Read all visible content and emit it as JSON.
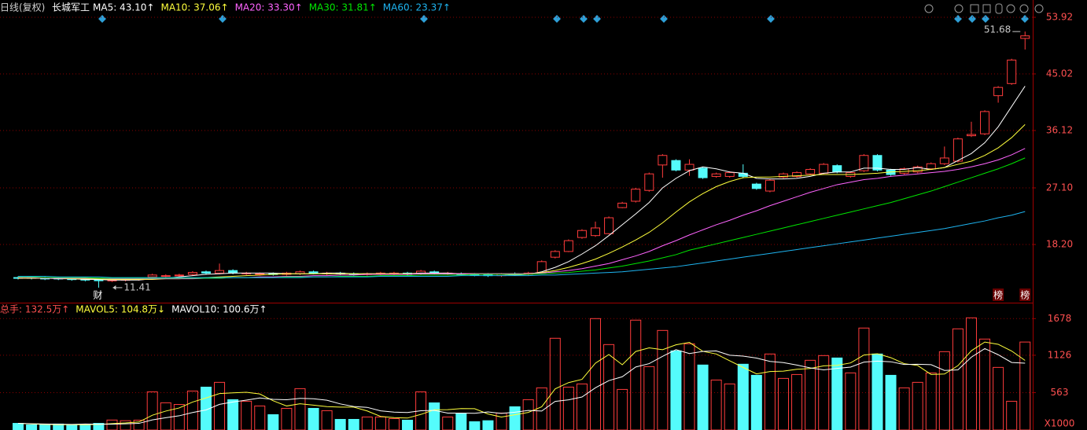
{
  "header": {
    "period": "日线(复权)",
    "name": "长城军工"
  },
  "chart_data": [
    {
      "type": "candlestick",
      "open": [
        13.0,
        13.0,
        12.9,
        12.9,
        12.8,
        12.8,
        12.7,
        12.5,
        12.6,
        12.7,
        13.1,
        13.2,
        13.3,
        13.5,
        13.9,
        13.7,
        14.1,
        13.6,
        13.5,
        13.6,
        13.5,
        13.6,
        13.9,
        13.6,
        13.7,
        13.6,
        13.5,
        13.6,
        13.6,
        13.7,
        13.6,
        13.9,
        13.6,
        13.6,
        13.5,
        13.5,
        13.3,
        13.6,
        13.5,
        13.8,
        16.2,
        17.1,
        19.3,
        19.6,
        19.9,
        24.0,
        25.0,
        26.7,
        30.7,
        31.4,
        29.9,
        30.2,
        28.9,
        28.9,
        29.4,
        27.7,
        26.6,
        28.8,
        28.9,
        29.3,
        29.4,
        30.6,
        28.9,
        29.8,
        32.2,
        29.9,
        29.4,
        29.6,
        30.1,
        30.9,
        31.3,
        35.3,
        35.6,
        41.6,
        43.5,
        50.6
      ],
      "high": [
        13.2,
        13.2,
        13.1,
        13.1,
        13.0,
        13.0,
        12.9,
        12.8,
        12.9,
        13.0,
        13.6,
        13.5,
        13.6,
        14.0,
        14.1,
        15.2,
        14.3,
        13.9,
        13.8,
        13.8,
        13.9,
        14.1,
        14.1,
        13.9,
        13.9,
        13.8,
        13.8,
        13.9,
        13.9,
        13.9,
        14.2,
        14.1,
        13.9,
        13.8,
        13.7,
        13.7,
        13.7,
        13.8,
        13.9,
        15.7,
        17.3,
        19.0,
        20.6,
        21.8,
        22.6,
        24.9,
        27.1,
        29.5,
        32.4,
        31.6,
        31.6,
        30.4,
        29.5,
        29.7,
        30.8,
        27.9,
        28.5,
        29.5,
        29.7,
        30.2,
        31.0,
        30.8,
        29.7,
        32.4,
        32.4,
        30.1,
        30.3,
        30.6,
        31.1,
        33.6,
        35.0,
        37.5,
        39.3,
        43.1,
        47.4,
        51.68
      ],
      "low": [
        12.7,
        12.7,
        12.6,
        12.6,
        12.5,
        12.4,
        11.41,
        12.3,
        12.4,
        12.5,
        12.9,
        13.0,
        13.1,
        13.3,
        13.5,
        13.5,
        13.5,
        13.4,
        13.3,
        13.3,
        13.3,
        13.4,
        13.5,
        13.4,
        13.4,
        13.3,
        13.3,
        13.4,
        13.4,
        13.3,
        13.4,
        13.5,
        13.4,
        13.3,
        13.2,
        13.1,
        13.1,
        13.3,
        13.3,
        13.7,
        16.0,
        17.0,
        19.1,
        19.4,
        19.8,
        23.9,
        24.8,
        26.5,
        28.7,
        29.7,
        29.0,
        28.5,
        28.7,
        28.7,
        28.6,
        26.8,
        26.4,
        28.6,
        28.7,
        29.1,
        29.2,
        29.4,
        28.7,
        29.6,
        29.7,
        29.0,
        29.2,
        29.4,
        29.9,
        30.7,
        31.1,
        35.1,
        35.4,
        40.5,
        43.3,
        48.85
      ],
      "close": [
        12.9,
        12.9,
        12.8,
        12.8,
        12.7,
        12.6,
        12.5,
        12.6,
        12.7,
        12.8,
        13.4,
        13.3,
        13.4,
        13.8,
        13.7,
        14.1,
        13.7,
        13.7,
        13.6,
        13.5,
        13.7,
        13.9,
        13.7,
        13.7,
        13.6,
        13.5,
        13.6,
        13.7,
        13.7,
        13.5,
        14.0,
        13.7,
        13.7,
        13.5,
        13.4,
        13.3,
        13.5,
        13.5,
        13.7,
        15.5,
        17.1,
        18.8,
        20.4,
        20.8,
        22.4,
        24.7,
        26.9,
        29.3,
        32.2,
        29.9,
        30.8,
        28.7,
        29.3,
        29.5,
        28.9,
        27.0,
        28.3,
        29.3,
        29.5,
        30.0,
        30.8,
        29.6,
        29.5,
        32.2,
        29.9,
        29.2,
        30.1,
        30.4,
        30.9,
        31.8,
        34.8,
        35.5,
        39.1,
        42.9,
        47.2,
        51.0
      ],
      "up_color": "#ff3c3c",
      "down_color": "#54fcfc",
      "series": [
        {
          "name": "MA5: 43.10↑",
          "color": "#ffffff",
          "values": [
            12.9,
            12.9,
            12.9,
            12.8,
            12.8,
            12.7,
            12.7,
            12.6,
            12.6,
            12.6,
            12.8,
            12.9,
            13.1,
            13.3,
            13.5,
            13.6,
            13.7,
            13.7,
            13.7,
            13.7,
            13.6,
            13.6,
            13.6,
            13.7,
            13.7,
            13.6,
            13.6,
            13.6,
            13.6,
            13.6,
            13.7,
            13.7,
            13.7,
            13.6,
            13.6,
            13.5,
            13.5,
            13.4,
            13.5,
            13.9,
            14.6,
            15.5,
            16.7,
            18.0,
            19.6,
            21.3,
            23.0,
            24.8,
            27.1,
            28.6,
            29.8,
            30.4,
            30.1,
            29.6,
            29.4,
            28.6,
            28.5,
            28.5,
            28.6,
            28.9,
            29.4,
            29.6,
            29.6,
            30.2,
            30.2,
            30.0,
            30.0,
            30.3,
            30.0,
            30.3,
            31.4,
            32.5,
            34.2,
            36.7,
            39.9,
            43.1
          ]
        },
        {
          "name": "MA10: 37.06↑",
          "color": "#ffff3c",
          "values": [
            12.9,
            12.9,
            12.9,
            12.9,
            12.8,
            12.8,
            12.8,
            12.7,
            12.7,
            12.7,
            12.7,
            12.8,
            12.8,
            12.9,
            13.0,
            13.1,
            13.2,
            13.3,
            13.4,
            13.5,
            13.6,
            13.6,
            13.6,
            13.6,
            13.6,
            13.6,
            13.6,
            13.6,
            13.6,
            13.6,
            13.6,
            13.6,
            13.6,
            13.6,
            13.6,
            13.6,
            13.6,
            13.6,
            13.6,
            13.8,
            14.1,
            14.6,
            15.2,
            15.9,
            16.8,
            17.8,
            18.9,
            20.1,
            21.6,
            23.3,
            24.9,
            26.2,
            27.3,
            28.1,
            28.7,
            28.8,
            28.8,
            28.9,
            29.0,
            29.1,
            29.2,
            29.2,
            29.2,
            29.3,
            29.4,
            29.6,
            29.7,
            29.8,
            30.0,
            30.3,
            30.8,
            31.3,
            32.2,
            33.4,
            35.0,
            37.06
          ]
        },
        {
          "name": "MA20: 33.30↑",
          "color": "#ff64ff",
          "values": [
            13.0,
            13.0,
            12.9,
            12.9,
            12.9,
            12.9,
            12.9,
            12.8,
            12.8,
            12.8,
            12.8,
            12.8,
            12.8,
            12.8,
            12.9,
            12.9,
            13.0,
            13.0,
            13.1,
            13.1,
            13.2,
            13.2,
            13.3,
            13.3,
            13.4,
            13.4,
            13.5,
            13.5,
            13.5,
            13.5,
            13.6,
            13.6,
            13.6,
            13.6,
            13.6,
            13.6,
            13.6,
            13.6,
            13.6,
            13.7,
            13.9,
            14.1,
            14.4,
            14.8,
            15.2,
            15.8,
            16.4,
            17.1,
            18.0,
            18.8,
            19.7,
            20.5,
            21.3,
            22.0,
            22.8,
            23.5,
            24.3,
            25.0,
            25.7,
            26.4,
            27.0,
            27.6,
            28.0,
            28.4,
            28.6,
            28.9,
            29.1,
            29.3,
            29.5,
            29.7,
            30.0,
            30.4,
            30.9,
            31.5,
            32.3,
            33.3
          ]
        },
        {
          "name": "MA30: 31.81↑",
          "color": "#00e600",
          "values": [
            13.1,
            13.1,
            13.0,
            13.0,
            13.0,
            13.0,
            12.9,
            12.9,
            12.9,
            12.9,
            12.9,
            12.9,
            12.9,
            12.9,
            12.9,
            12.9,
            13.0,
            13.0,
            13.0,
            13.0,
            13.1,
            13.1,
            13.1,
            13.1,
            13.2,
            13.2,
            13.2,
            13.3,
            13.3,
            13.3,
            13.4,
            13.4,
            13.4,
            13.4,
            13.5,
            13.5,
            13.5,
            13.5,
            13.5,
            13.6,
            13.7,
            13.8,
            14.0,
            14.2,
            14.5,
            14.8,
            15.2,
            15.6,
            16.1,
            16.6,
            17.3,
            17.8,
            18.3,
            18.8,
            19.3,
            19.8,
            20.3,
            20.8,
            21.3,
            21.8,
            22.3,
            22.8,
            23.3,
            23.8,
            24.3,
            24.8,
            25.4,
            26.0,
            26.6,
            27.3,
            28.0,
            28.7,
            29.4,
            30.1,
            30.9,
            31.81
          ]
        },
        {
          "name": "MA60: 23.37↑",
          "color": "#1eb4f0",
          "values": [
            13.2,
            13.2,
            13.2,
            13.1,
            13.1,
            13.1,
            13.1,
            13.0,
            13.0,
            13.0,
            13.0,
            13.0,
            13.0,
            13.0,
            13.0,
            13.0,
            13.0,
            13.0,
            13.0,
            13.0,
            13.0,
            13.0,
            13.1,
            13.1,
            13.1,
            13.1,
            13.1,
            13.2,
            13.2,
            13.2,
            13.2,
            13.2,
            13.2,
            13.3,
            13.3,
            13.3,
            13.3,
            13.3,
            13.3,
            13.4,
            13.4,
            13.5,
            13.6,
            13.7,
            13.8,
            13.9,
            14.1,
            14.3,
            14.5,
            14.7,
            15.0,
            15.3,
            15.6,
            15.9,
            16.2,
            16.5,
            16.8,
            17.1,
            17.4,
            17.7,
            18.0,
            18.3,
            18.6,
            18.9,
            19.2,
            19.5,
            19.8,
            20.1,
            20.4,
            20.7,
            21.1,
            21.5,
            21.9,
            22.4,
            22.8,
            23.37
          ]
        }
      ],
      "ylim": [
        9.3,
        56.64
      ],
      "yticks": [
        {
          "value": 18.2,
          "label": "18.20"
        },
        {
          "value": 27.1,
          "label": "27.10"
        },
        36.12,
        45.02,
        53.92
      ],
      "grid": true,
      "annotations": [
        {
          "label": "51.68",
          "value": 51.68
        },
        {
          "label": "11.41",
          "value": 11.41
        }
      ],
      "badges": [
        "财",
        "榜",
        "榜"
      ]
    },
    {
      "type": "bar",
      "title": "总手: 132.5万↑",
      "values": [
        100,
        77,
        77,
        90,
        77,
        77,
        100,
        150,
        140,
        148,
        575,
        410,
        385,
        587,
        646,
        718,
        457,
        433,
        362,
        231,
        326,
        623,
        326,
        291,
        160,
        160,
        196,
        196,
        172,
        148,
        575,
        409,
        196,
        243,
        125,
        140,
        255,
        350,
        457,
        635,
        1382,
        646,
        694,
        1678,
        1287,
        611,
        1655,
        955,
        1500,
        1192,
        1299,
        979,
        753,
        694,
        991,
        824,
        1145,
        777,
        836,
        1050,
        1121,
        1085,
        860,
        1536,
        1145,
        824,
        635,
        718,
        860,
        1180,
        1524,
        1690,
        1370,
        943,
        433,
        1325
      ],
      "series": [
        {
          "name": "MAVOL5: 104.8万↓",
          "color": "#ffff3c",
          "values": [
            100,
            90,
            85,
            80,
            80,
            80,
            84,
            96,
            106,
            121,
            223,
            285,
            332,
            421,
            483,
            549,
            559,
            568,
            543,
            440,
            362,
            395,
            374,
            353,
            345,
            345,
            287,
            204,
            186,
            180,
            235,
            305,
            306,
            323,
            321,
            241,
            195,
            230,
            265,
            350,
            620,
            714,
            763,
            1007,
            1137,
            983,
            1183,
            1237,
            1210,
            1283,
            1320,
            1185,
            1145,
            1043,
            943,
            846,
            881,
            886,
            915,
            926,
            966,
            974,
            1010,
            1130,
            1149,
            1090,
            1000,
            972,
            837,
            843,
            969,
            1194,
            1325,
            1291,
            1190,
            1048
          ]
        },
        {
          "name": "MAVOL10: 100.6万↑",
          "color": "#ffffff",
          "values": [
            100,
            95,
            90,
            87,
            85,
            90,
            87,
            88,
            93,
            100,
            152,
            185,
            214,
            264,
            302,
            386,
            422,
            450,
            482,
            462,
            456,
            477,
            471,
            448,
            393,
            354,
            341,
            289,
            270,
            263,
            290,
            296,
            255,
            255,
            251,
            273,
            250,
            268,
            294,
            286,
            431,
            455,
            497,
            636,
            744,
            802,
            949,
            1000,
            1109,
            1210,
            1152,
            1184,
            1191,
            1127,
            1113,
            1083,
            1033,
            1016,
            979,
            935,
            906,
            928,
            948,
            1023,
            1038,
            1028,
            987,
            991,
            984,
            897,
            906,
            1097,
            1226,
            1134,
            1017,
            1006
          ]
        }
      ],
      "ylim": [
        0,
        1800
      ],
      "yticks": [
        563,
        1126,
        1678
      ],
      "y_unit": "X1000",
      "grid": false
    }
  ]
}
